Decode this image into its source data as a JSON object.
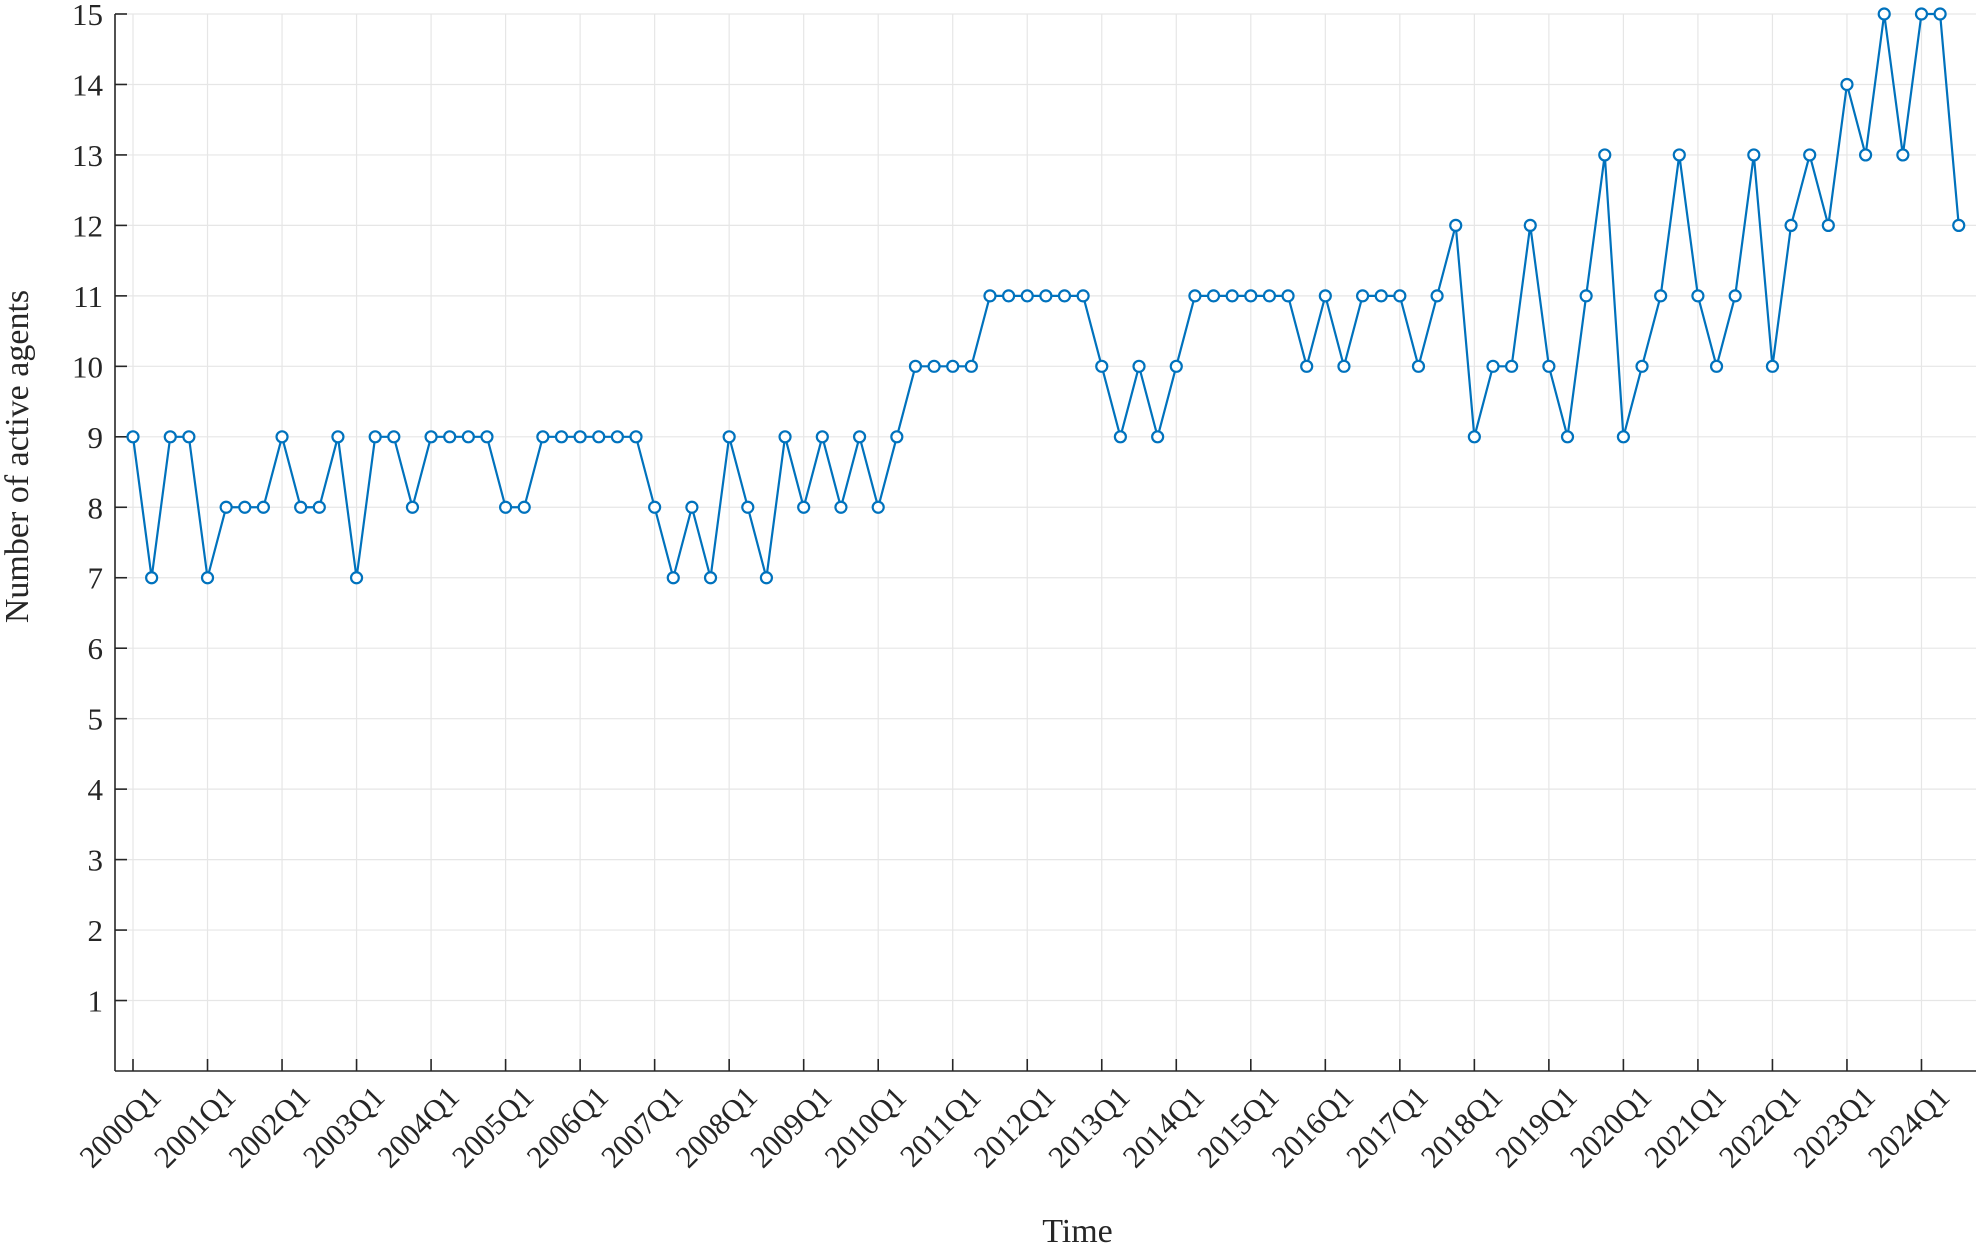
{
  "chart_data": {
    "type": "line",
    "xlabel": "Time",
    "ylabel": "Number of active agents",
    "ylim": [
      0,
      15
    ],
    "yticks": [
      1,
      2,
      3,
      4,
      5,
      6,
      7,
      8,
      9,
      10,
      11,
      12,
      13,
      14,
      15
    ],
    "xticks": [
      "2000Q1",
      "2001Q1",
      "2002Q1",
      "2003Q1",
      "2004Q1",
      "2005Q1",
      "2006Q1",
      "2007Q1",
      "2008Q1",
      "2009Q1",
      "2010Q1",
      "2011Q1",
      "2012Q1",
      "2013Q1",
      "2014Q1",
      "2015Q1",
      "2016Q1",
      "2017Q1",
      "2018Q1",
      "2019Q1",
      "2020Q1",
      "2021Q1",
      "2022Q1",
      "2023Q1",
      "2024Q1"
    ],
    "grid": true,
    "colors": {
      "series": "#0072BD",
      "grid": "#e6e6e6",
      "axis": "#262626"
    },
    "marker": "open-circle",
    "series": [
      {
        "x": [
          "2000Q1",
          "2000Q2",
          "2000Q3",
          "2000Q4",
          "2001Q1",
          "2001Q2",
          "2001Q3",
          "2001Q4",
          "2002Q1",
          "2002Q2",
          "2002Q3",
          "2002Q4",
          "2003Q1",
          "2003Q2",
          "2003Q3",
          "2003Q4",
          "2004Q1",
          "2004Q2",
          "2004Q3",
          "2004Q4",
          "2005Q1",
          "2005Q2",
          "2005Q3",
          "2005Q4",
          "2006Q1",
          "2006Q2",
          "2006Q3",
          "2006Q4",
          "2007Q1",
          "2007Q2",
          "2007Q3",
          "2007Q4",
          "2008Q1",
          "2008Q2",
          "2008Q3",
          "2008Q4",
          "2009Q1",
          "2009Q2",
          "2009Q3",
          "2009Q4",
          "2010Q1",
          "2010Q2",
          "2010Q3",
          "2010Q4",
          "2011Q1",
          "2011Q2",
          "2011Q3",
          "2011Q4",
          "2012Q1",
          "2012Q2",
          "2012Q3",
          "2012Q4",
          "2013Q1",
          "2013Q2",
          "2013Q3",
          "2013Q4",
          "2014Q1",
          "2014Q2",
          "2014Q3",
          "2014Q4",
          "2015Q1",
          "2015Q2",
          "2015Q3",
          "2015Q4",
          "2016Q1",
          "2016Q2",
          "2016Q3",
          "2016Q4",
          "2017Q1",
          "2017Q2",
          "2017Q3",
          "2017Q4",
          "2018Q1",
          "2018Q2",
          "2018Q3",
          "2018Q4",
          "2019Q1",
          "2019Q2",
          "2019Q3",
          "2019Q4",
          "2020Q1",
          "2020Q2",
          "2020Q3",
          "2020Q4",
          "2021Q1",
          "2021Q2",
          "2021Q3",
          "2021Q4",
          "2022Q1",
          "2022Q2",
          "2022Q3",
          "2022Q4",
          "2023Q1",
          "2023Q2",
          "2023Q3",
          "2023Q4",
          "2024Q1",
          "2024Q2",
          "2024Q3"
        ],
        "values": [
          9,
          7,
          9,
          9,
          7,
          8,
          8,
          8,
          9,
          8,
          8,
          9,
          7,
          9,
          9,
          8,
          9,
          9,
          9,
          9,
          8,
          8,
          9,
          9,
          9,
          9,
          9,
          9,
          8,
          7,
          8,
          7,
          9,
          8,
          7,
          9,
          8,
          9,
          8,
          9,
          8,
          9,
          10,
          10,
          10,
          10,
          11,
          11,
          11,
          11,
          11,
          11,
          10,
          9,
          10,
          9,
          10,
          11,
          11,
          11,
          11,
          11,
          11,
          10,
          11,
          10,
          11,
          11,
          11,
          10,
          11,
          12,
          9,
          10,
          10,
          12,
          10,
          9,
          11,
          13,
          9,
          10,
          11,
          13,
          11,
          10,
          11,
          13,
          10,
          12,
          13,
          12,
          14,
          13,
          15,
          13,
          15,
          15,
          12
        ]
      }
    ]
  }
}
